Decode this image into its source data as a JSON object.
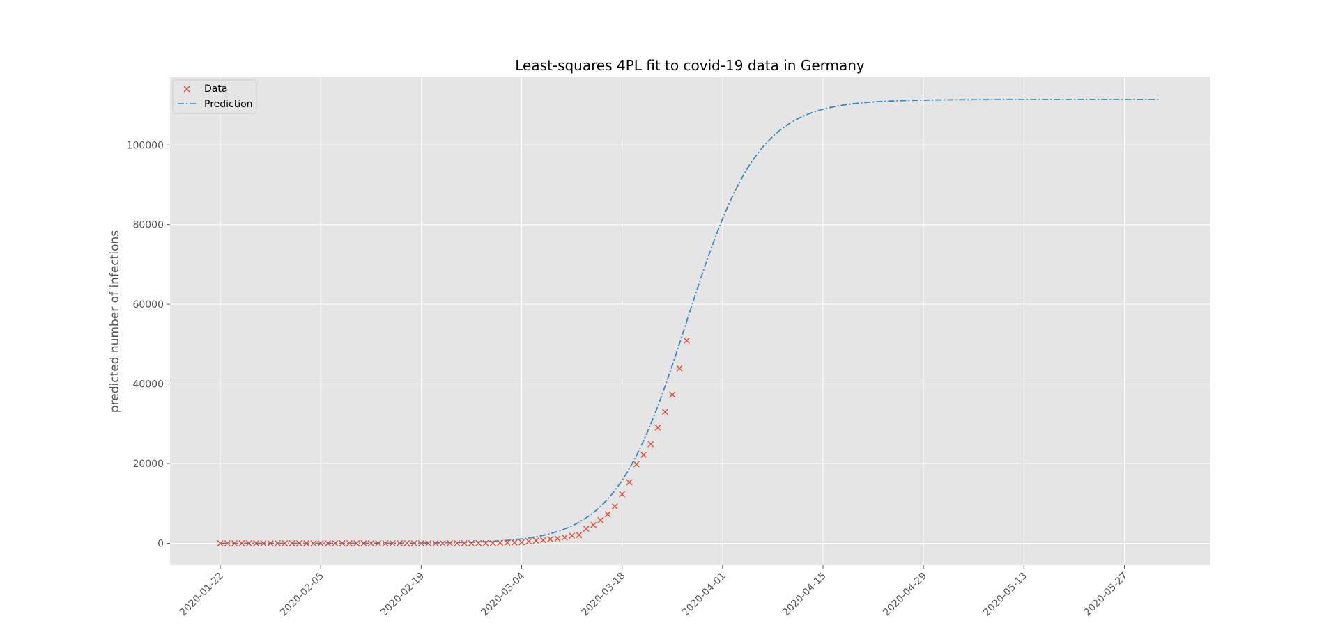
{
  "chart_data": {
    "type": "line",
    "title": "Least-squares 4PL fit to covid-19 data in Germany",
    "xlabel": "",
    "ylabel": "predicted number of infections",
    "x_tick_labels": [
      "2020-01-22",
      "2020-02-05",
      "2020-02-19",
      "2020-03-04",
      "2020-03-18",
      "2020-04-01",
      "2020-04-15",
      "2020-04-29",
      "2020-05-13",
      "2020-05-27"
    ],
    "y_tick_labels": [
      "0",
      "20000",
      "40000",
      "60000",
      "80000",
      "100000"
    ],
    "y_ticks": [
      0,
      20000,
      40000,
      60000,
      80000,
      100000
    ],
    "xlim": [
      "2020-01-15",
      "2020-06-08"
    ],
    "ylim": [
      -5500,
      117000
    ],
    "grid": true,
    "legend_position": "top-left",
    "colors": {
      "data": "#E24A33",
      "prediction": "#348ABD",
      "background": "#E5E5E5",
      "grid": "#FFFFFF"
    },
    "series": [
      {
        "name": "Data",
        "kind": "scatter",
        "marker": "x",
        "x": [
          "2020-01-22",
          "2020-01-23",
          "2020-01-24",
          "2020-01-25",
          "2020-01-26",
          "2020-01-27",
          "2020-01-28",
          "2020-01-29",
          "2020-01-30",
          "2020-01-31",
          "2020-02-01",
          "2020-02-02",
          "2020-02-03",
          "2020-02-04",
          "2020-02-05",
          "2020-02-06",
          "2020-02-07",
          "2020-02-08",
          "2020-02-09",
          "2020-02-10",
          "2020-02-11",
          "2020-02-12",
          "2020-02-13",
          "2020-02-14",
          "2020-02-15",
          "2020-02-16",
          "2020-02-17",
          "2020-02-18",
          "2020-02-19",
          "2020-02-20",
          "2020-02-21",
          "2020-02-22",
          "2020-02-23",
          "2020-02-24",
          "2020-02-25",
          "2020-02-26",
          "2020-02-27",
          "2020-02-28",
          "2020-02-29",
          "2020-03-01",
          "2020-03-02",
          "2020-03-03",
          "2020-03-04",
          "2020-03-05",
          "2020-03-06",
          "2020-03-07",
          "2020-03-08",
          "2020-03-09",
          "2020-03-10",
          "2020-03-11",
          "2020-03-12",
          "2020-03-13",
          "2020-03-14",
          "2020-03-15",
          "2020-03-16",
          "2020-03-17",
          "2020-03-18",
          "2020-03-19",
          "2020-03-20",
          "2020-03-21",
          "2020-03-22",
          "2020-03-23",
          "2020-03-24",
          "2020-03-25",
          "2020-03-26",
          "2020-03-27"
        ],
        "y": [
          0,
          0,
          0,
          0,
          0,
          1,
          4,
          4,
          4,
          5,
          8,
          10,
          12,
          12,
          12,
          12,
          13,
          13,
          14,
          14,
          16,
          16,
          16,
          16,
          16,
          16,
          16,
          16,
          16,
          16,
          16,
          16,
          16,
          16,
          17,
          27,
          46,
          48,
          79,
          130,
          159,
          196,
          262,
          482,
          670,
          799,
          1040,
          1176,
          1457,
          1908,
          2078,
          3675,
          4585,
          5795,
          7272,
          9257,
          12327,
          15320,
          19848,
          22213,
          24873,
          29056,
          32986,
          37323,
          43938,
          50871
        ]
      },
      {
        "name": "Prediction",
        "kind": "line",
        "style": "dash-dot",
        "x_start": "2020-01-22",
        "x_end": "2020-06-01",
        "model": "4PL",
        "params": {
          "bottom": 0,
          "top": 111400,
          "inflection_date": "2020-03-27",
          "slope": 0.2
        }
      }
    ]
  }
}
